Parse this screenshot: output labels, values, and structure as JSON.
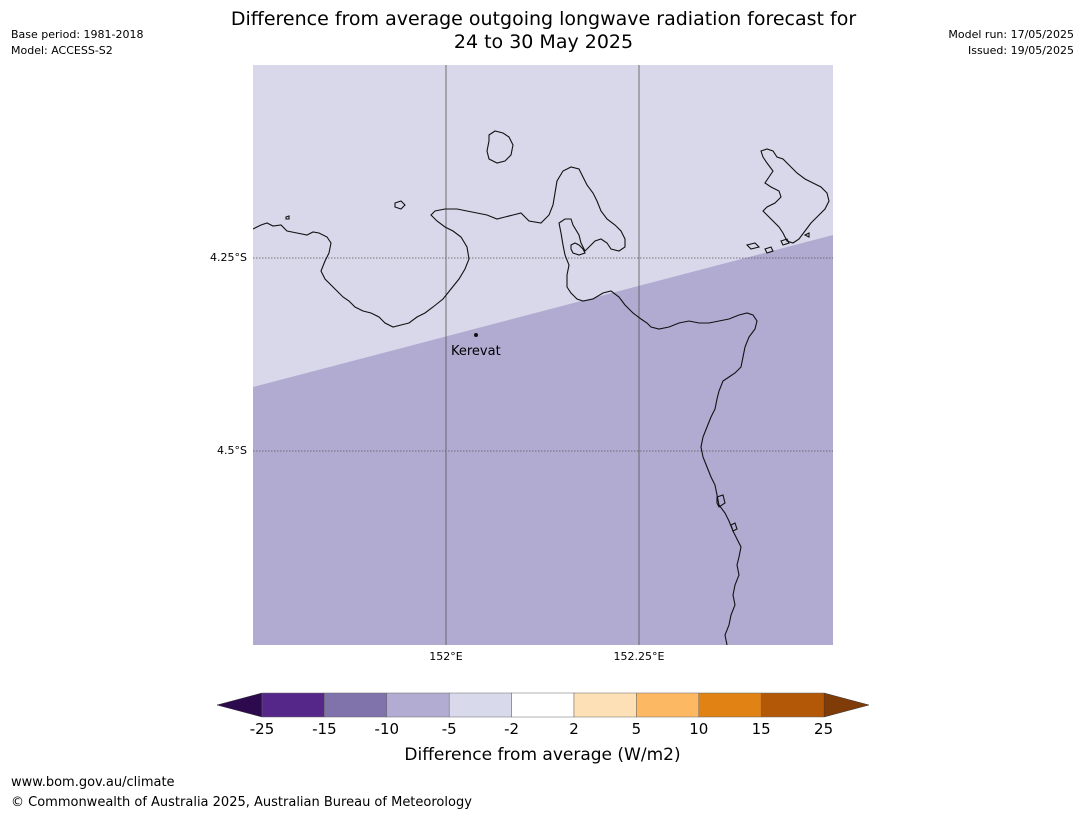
{
  "header": {
    "title_line1": "Difference from average outgoing longwave radiation forecast for",
    "title_line2": "24 to 30 May 2025",
    "base_period": "Base period: 1981-2018",
    "model": "Model: ACCESS-S2",
    "model_run": "Model run: 17/05/2025",
    "issued": "Issued: 19/05/2025"
  },
  "map": {
    "place_label": "Kerevat",
    "lat_labels": [
      "4.25°S",
      "4.5°S"
    ],
    "lon_labels": [
      "152°E",
      "152.25°E"
    ],
    "region_colors": {
      "upper_band": "#d8d8ea",
      "lower_band": "#b1abd2",
      "coast": "#111111",
      "gridline": "#555555"
    },
    "region_categories": {
      "upper_band": "-5 to -2",
      "lower_band": "-10 to -5"
    }
  },
  "colorbar": {
    "label": "Difference from average (W/m2)",
    "ticks": [
      "-25",
      "-15",
      "-10",
      "-5",
      "-2",
      "2",
      "5",
      "10",
      "15",
      "25"
    ],
    "under_color": "#2d0a4e",
    "over_color": "#7f3b08",
    "colors": [
      "#542788",
      "#8073ac",
      "#b2abd2",
      "#d8daeb",
      "#ffffff",
      "#fee0b6",
      "#fdb863",
      "#e08214",
      "#b35806"
    ]
  },
  "footer": {
    "url": "www.bom.gov.au/climate",
    "copyright": "© Commonwealth of Australia 2025, Australian Bureau of Meteorology"
  }
}
